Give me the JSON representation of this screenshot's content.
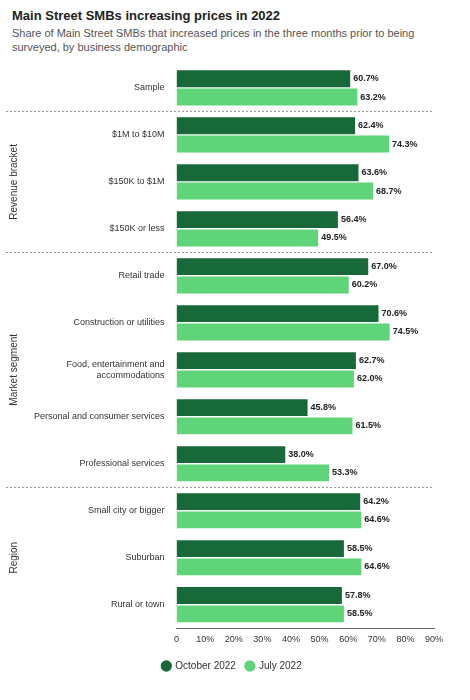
{
  "chart_data": {
    "type": "bar",
    "orientation": "horizontal",
    "title": "Main Street SMBs increasing prices in 2022",
    "subtitle": "Share of Main Street SMBs that increased prices in the three months prior to being surveyed, by business demographic",
    "categories": [
      "Sample",
      "$1M to $10M",
      "$150K to $1M",
      "$150K or less",
      "Retail trade",
      "Construction or utilities",
      "Food, entertainment and accommodations",
      "Personal and consumer services",
      "Professional services",
      "Small city or bigger",
      "Suburban",
      "Rural or town"
    ],
    "category_groups": [
      null,
      "Revenue bracket",
      "Revenue bracket",
      "Revenue bracket",
      "Market segment",
      "Market segment",
      "Market segment",
      "Market segment",
      "Market segment",
      "Region",
      "Region",
      "Region"
    ],
    "series": [
      {
        "name": "October 2022",
        "color": "#17693a",
        "values": [
          60.7,
          62.4,
          63.6,
          56.4,
          67.0,
          70.6,
          62.7,
          45.8,
          38.0,
          64.2,
          58.5,
          57.8
        ],
        "value_labels": [
          "60.7%",
          "62.4%",
          "63.6%",
          "56.4%",
          "67.0%",
          "70.6%",
          "62.7%",
          "45.8%",
          "38.0%",
          "64.2%",
          "58.5%",
          "57.8%"
        ]
      },
      {
        "name": "July 2022",
        "color": "#5fd479",
        "values": [
          63.2,
          74.3,
          68.7,
          49.5,
          60.2,
          74.5,
          62.0,
          61.5,
          53.3,
          64.6,
          64.6,
          58.5
        ],
        "value_labels": [
          "63.2%",
          "74.3%",
          "68.7%",
          "49.5%",
          "60.2%",
          "74.5%",
          "62.0%",
          "61.5%",
          "53.3%",
          "64.6%",
          "64.6%",
          "58.5%"
        ]
      }
    ],
    "xlim": [
      0,
      90
    ],
    "xticks": [
      {
        "value": 0,
        "label": "0"
      },
      {
        "value": 10,
        "label": "10%"
      },
      {
        "value": 20,
        "label": "20%"
      },
      {
        "value": 30,
        "label": "30%"
      },
      {
        "value": 40,
        "label": "40%"
      },
      {
        "value": 50,
        "label": "50%"
      },
      {
        "value": 60,
        "label": "60%"
      },
      {
        "value": 70,
        "label": "70%"
      },
      {
        "value": 80,
        "label": "80%"
      },
      {
        "value": 90,
        "label": "90%"
      }
    ],
    "grid": false,
    "data_labels": true,
    "legend": "bottom"
  }
}
